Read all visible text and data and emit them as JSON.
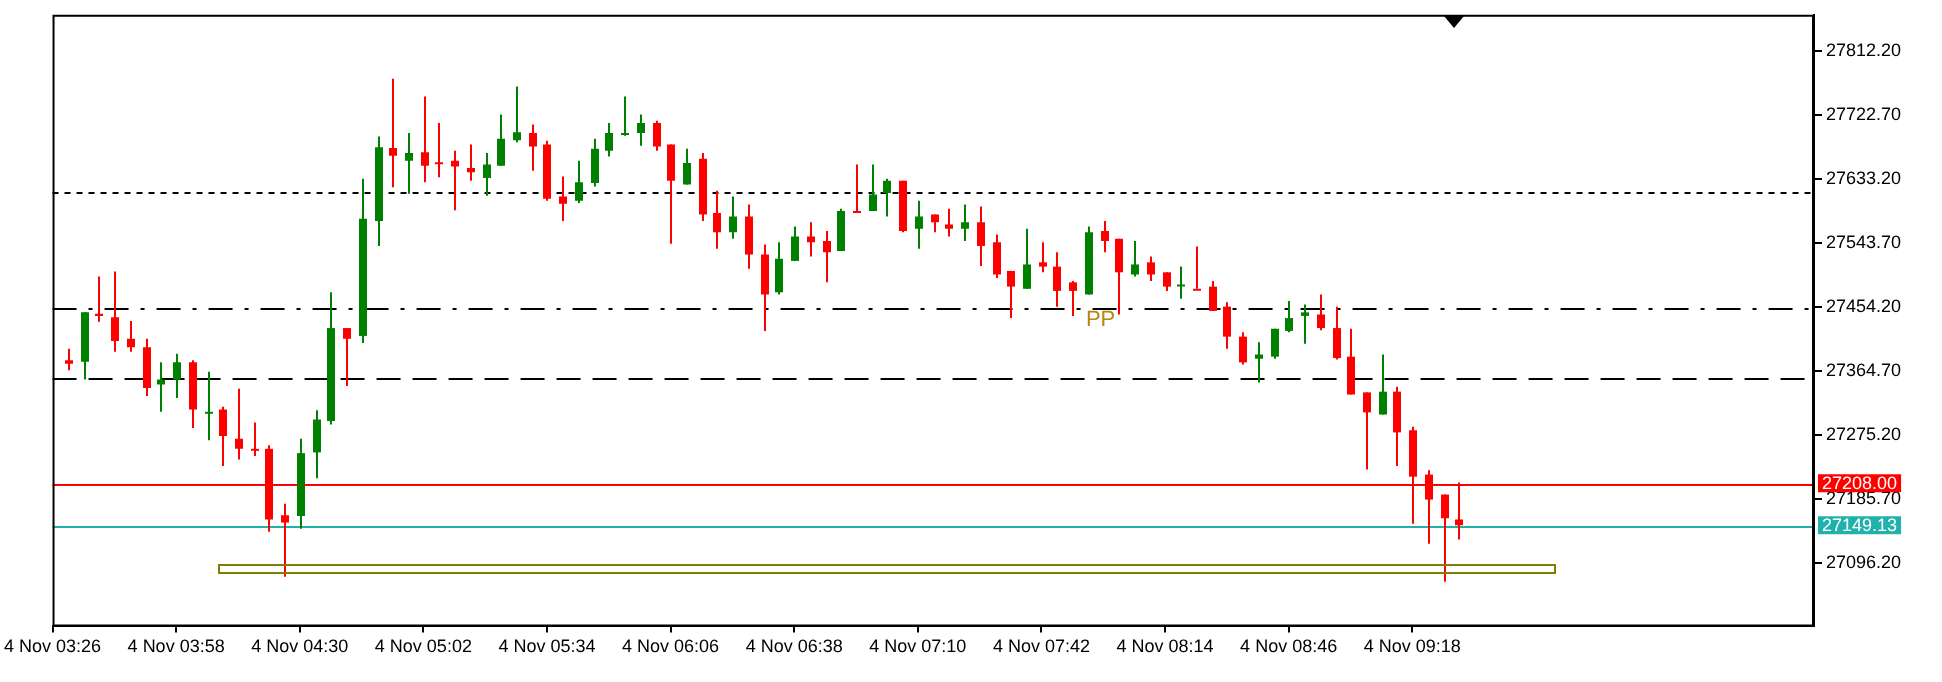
{
  "chart_data": {
    "type": "candlestick",
    "categories": [
      "4 Nov 03:26",
      null,
      null,
      null,
      null,
      null,
      null,
      null,
      "4 Nov 03:58",
      null,
      null,
      null,
      null,
      null,
      null,
      null,
      "4 Nov 04:30",
      null,
      null,
      null,
      null,
      null,
      null,
      null,
      "4 Nov 05:02",
      null,
      null,
      null,
      null,
      null,
      null,
      null,
      "4 Nov 05:34",
      null,
      null,
      null,
      null,
      null,
      null,
      null,
      "4 Nov 06:06",
      null,
      null,
      null,
      null,
      null,
      null,
      null,
      "4 Nov 06:38",
      null,
      null,
      null,
      null,
      null,
      null,
      null,
      "4 Nov 07:10",
      null,
      null,
      null,
      null,
      null,
      null,
      null,
      "4 Nov 07:42",
      null,
      null,
      null,
      null,
      null,
      null,
      null,
      "4 Nov 08:14",
      null,
      null,
      null,
      null,
      null,
      null,
      null,
      "4 Nov 08:46",
      null,
      null,
      null,
      null,
      null,
      null,
      null,
      "4 Nov 09:18",
      null,
      null,
      null,
      null,
      null,
      null,
      null,
      null,
      null,
      null,
      null,
      null,
      null,
      null,
      null,
      null,
      null,
      null,
      null,
      null,
      null,
      null,
      null,
      null,
      null,
      null
    ],
    "ohlc": [
      null,
      [
        27380,
        27396,
        27366,
        27375
      ],
      [
        27378,
        27447,
        27353,
        27447
      ],
      [
        27445,
        27497,
        27434,
        27442
      ],
      [
        27440,
        27504,
        27392,
        27407
      ],
      [
        27410,
        27435,
        27392,
        27398
      ],
      [
        27398,
        27410,
        27330,
        27341
      ],
      [
        27346,
        27377,
        27308,
        27353
      ],
      [
        27353,
        27389,
        27327,
        27377
      ],
      [
        27377,
        27380,
        27285,
        27311
      ],
      [
        27307,
        27364,
        27268,
        27308
      ],
      [
        27311,
        27315,
        27232,
        27274
      ],
      [
        27270,
        27340,
        27241,
        27256
      ],
      [
        27256,
        27293,
        27246,
        27255
      ],
      [
        27256,
        27261,
        27140,
        27157
      ],
      [
        27163,
        27179,
        27077,
        27153
      ],
      [
        27162,
        27270,
        27144,
        27250
      ],
      [
        27251,
        27310,
        27215,
        27297
      ],
      [
        27295,
        27475,
        27290,
        27425
      ],
      [
        27425,
        27425,
        27344,
        27410
      ],
      [
        27414,
        27634,
        27404,
        27578
      ],
      [
        27575,
        27693,
        27540,
        27678
      ],
      [
        27677,
        27774,
        27622,
        27666
      ],
      [
        27659,
        27698,
        27613,
        27670
      ],
      [
        27671,
        27749,
        27629,
        27652
      ],
      [
        27657,
        27712,
        27636,
        27657
      ],
      [
        27659,
        27673,
        27590,
        27651
      ],
      [
        27649,
        27682,
        27631,
        27643
      ],
      [
        27635,
        27670,
        27610,
        27654
      ],
      [
        27652,
        27724,
        27652,
        27690
      ],
      [
        27688,
        27763,
        27685,
        27699
      ],
      [
        27698,
        27710,
        27645,
        27679
      ],
      [
        27682,
        27687,
        27603,
        27606
      ],
      [
        27609,
        27637,
        27575,
        27599
      ],
      [
        27603,
        27659,
        27600,
        27629
      ],
      [
        27628,
        27690,
        27623,
        27676
      ],
      [
        27673,
        27712,
        27665,
        27698
      ],
      [
        27696,
        27749,
        27694,
        27698
      ],
      [
        27698,
        27724,
        27680,
        27712
      ],
      [
        27712,
        27715,
        27673,
        27679
      ],
      [
        27682,
        27682,
        27543,
        27631
      ],
      [
        27626,
        27676,
        27626,
        27656
      ],
      [
        27662,
        27670,
        27575,
        27584
      ],
      [
        27586,
        27617,
        27536,
        27559
      ],
      [
        27559,
        27609,
        27550,
        27581
      ],
      [
        27581,
        27598,
        27508,
        27528
      ],
      [
        27528,
        27542,
        27421,
        27472
      ],
      [
        27475,
        27545,
        27472,
        27522
      ],
      [
        27519,
        27567,
        27519,
        27553
      ],
      [
        27553,
        27573,
        27525,
        27545
      ],
      [
        27547,
        27561,
        27489,
        27531
      ],
      [
        27533,
        27592,
        27533,
        27589
      ],
      [
        27589,
        27654,
        27586,
        27589
      ],
      [
        27589,
        27654,
        27589,
        27612
      ],
      [
        27614,
        27634,
        27581,
        27631
      ],
      [
        27631,
        27631,
        27559,
        27561
      ],
      [
        27564,
        27603,
        27536,
        27581
      ],
      [
        27584,
        27584,
        27559,
        27573
      ],
      [
        27570,
        27592,
        27553,
        27564
      ],
      [
        27564,
        27598,
        27547,
        27573
      ],
      [
        27573,
        27595,
        27512,
        27540
      ],
      [
        27545,
        27556,
        27495,
        27500
      ],
      [
        27505,
        27505,
        27439,
        27483
      ],
      [
        27480,
        27564,
        27480,
        27514
      ],
      [
        27517,
        27545,
        27503,
        27511
      ],
      [
        27511,
        27531,
        27455,
        27477
      ],
      [
        27489,
        27491,
        27442,
        27477
      ],
      [
        27472,
        27567,
        27472,
        27559
      ],
      [
        27561,
        27575,
        27531,
        27547
      ],
      [
        27550,
        27550,
        27444,
        27503
      ],
      [
        27500,
        27547,
        27497,
        27514
      ],
      [
        27517,
        27525,
        27491,
        27500
      ],
      [
        27503,
        27503,
        27477,
        27483
      ],
      [
        27486,
        27511,
        27466,
        27486
      ],
      [
        27480,
        27539,
        27480,
        27480
      ],
      [
        27483,
        27491,
        27449,
        27449
      ],
      [
        27455,
        27461,
        27396,
        27413
      ],
      [
        27413,
        27419,
        27374,
        27377
      ],
      [
        27382,
        27405,
        27349,
        27388
      ],
      [
        27385,
        27424,
        27382,
        27424
      ],
      [
        27421,
        27463,
        27419,
        27439
      ],
      [
        27442,
        27458,
        27403,
        27447
      ],
      [
        27444,
        27472,
        27422,
        27425
      ],
      [
        27425,
        27455,
        27381,
        27383
      ],
      [
        27385,
        27424,
        27332,
        27332
      ],
      [
        27335,
        27335,
        27227,
        27307
      ],
      [
        27304,
        27388,
        27304,
        27336
      ],
      [
        27336,
        27343,
        27232,
        27279
      ],
      [
        27282,
        27287,
        27151,
        27217
      ],
      [
        27220,
        27226,
        27123,
        27185
      ],
      [
        27192,
        27192,
        27070,
        27159
      ],
      [
        27157,
        27209,
        27129,
        27149
      ],
      null,
      null,
      null,
      null,
      null,
      null,
      null,
      null,
      null,
      null,
      null,
      null,
      null,
      null,
      null,
      null,
      null,
      null,
      null,
      null,
      null,
      null,
      null
    ],
    "colors": [
      null,
      "#ff0000",
      "#008000",
      "#ff0000",
      "#ff0000",
      "#ff0000",
      "#ff0000",
      "#008000",
      "#008000",
      "#ff0000",
      "#008000",
      "#ff0000",
      "#ff0000",
      "#ff0000",
      "#ff0000",
      "#ff0000",
      "#008000",
      "#008000",
      "#008000",
      "#ff0000",
      "#008000",
      "#008000",
      "#ff0000",
      "#008000",
      "#ff0000",
      "#ff0000",
      "#ff0000",
      "#ff0000",
      "#008000",
      "#008000",
      "#008000",
      "#ff0000",
      "#ff0000",
      "#ff0000",
      "#008000",
      "#008000",
      "#008000",
      "#008000",
      "#008000",
      "#ff0000",
      "#ff0000",
      "#008000",
      "#ff0000",
      "#ff0000",
      "#008000",
      "#ff0000",
      "#ff0000",
      "#008000",
      "#008000",
      "#ff0000",
      "#ff0000",
      "#008000",
      "#ff0000",
      "#008000",
      "#008000",
      "#ff0000",
      "#008000",
      "#ff0000",
      "#ff0000",
      "#008000",
      "#ff0000",
      "#ff0000",
      "#ff0000",
      "#008000",
      "#ff0000",
      "#ff0000",
      "#ff0000",
      "#008000",
      "#ff0000",
      "#ff0000",
      "#008000",
      "#ff0000",
      "#ff0000",
      "#008000",
      "#ff0000",
      "#ff0000",
      "#ff0000",
      "#ff0000",
      "#008000",
      "#008000",
      "#008000",
      "#008000",
      "#ff0000",
      "#ff0000",
      "#ff0000",
      "#ff0000",
      "#008000",
      "#ff0000",
      "#ff0000",
      "#ff0000",
      "#ff0000",
      "#ff0000",
      null,
      null,
      null,
      null,
      null,
      null,
      null,
      null,
      null,
      null,
      null,
      null,
      null,
      null,
      null,
      null,
      null,
      null,
      null,
      null,
      null,
      null,
      null
    ],
    "ylim": [
      27007.5,
      27863.4
    ],
    "yticks": [
      {
        "value": 27096.2,
        "label": "27096.20"
      },
      {
        "value": 27185.7,
        "label": "27185.70"
      },
      {
        "value": 27275.2,
        "label": "27275.20"
      },
      {
        "value": 27364.7,
        "label": "27364.70"
      },
      {
        "value": 27454.2,
        "label": "27454.20"
      },
      {
        "value": 27543.7,
        "label": "27543.70"
      },
      {
        "value": 27633.2,
        "label": "27633.20"
      },
      {
        "value": 27722.7,
        "label": "27722.70"
      },
      {
        "value": 27812.2,
        "label": "27812.20"
      }
    ],
    "ref_lines": [
      {
        "axis": "y",
        "value": 27614.5,
        "line_style": "dotted",
        "color": "#000000"
      },
      {
        "axis": "y",
        "value": 27454.2,
        "line_style": "dashdot",
        "color": "#000000"
      },
      {
        "axis": "y",
        "value": 27354.3,
        "line_style": "dashed",
        "color": "#000000"
      },
      {
        "axis": "y",
        "value": 27208.0,
        "label": "27208.00",
        "color": "#ff0000"
      },
      {
        "axis": "y",
        "value": 27149.13,
        "label": "27149.13",
        "color": "#20b2aa"
      }
    ],
    "annotations": [
      {
        "text": "PP",
        "y": 27454.2
      }
    ],
    "grid": false,
    "legend": false
  }
}
